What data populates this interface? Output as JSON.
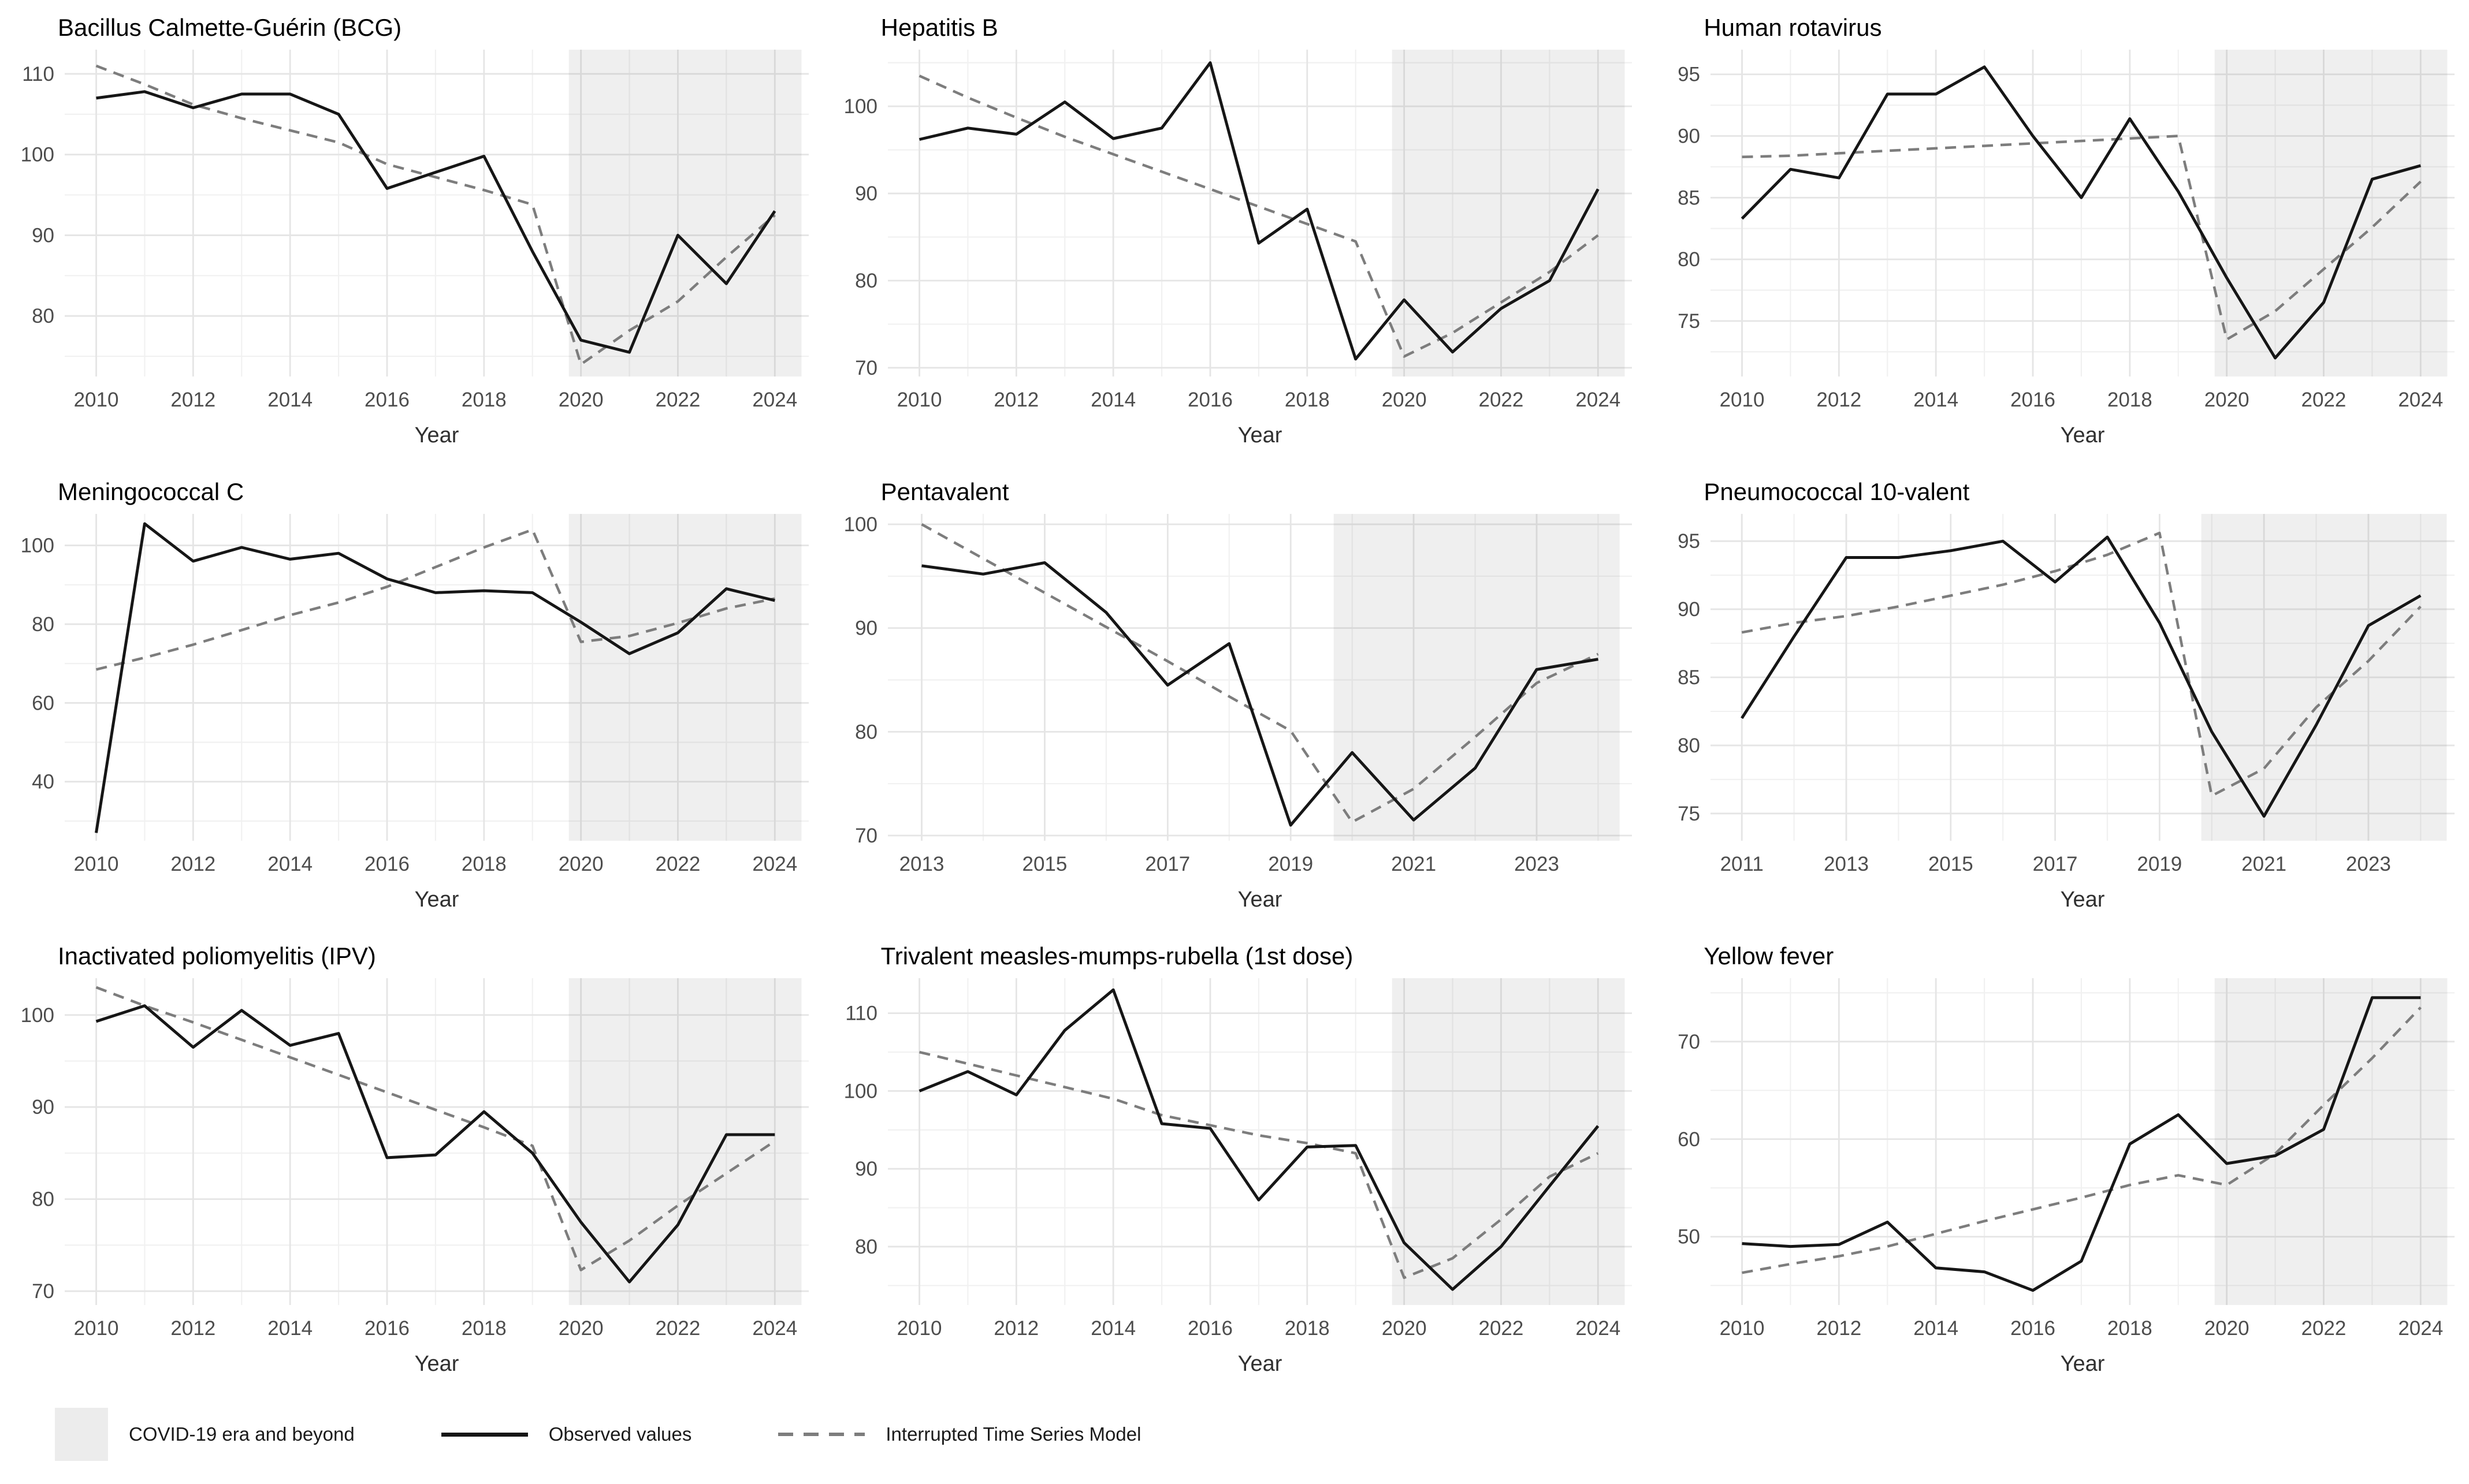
{
  "legend": {
    "covid_label": "COVID-19 era and beyond",
    "observed_label": "Observed values",
    "model_label": "Interrupted Time Series Model"
  },
  "colors": {
    "observed": "#161616",
    "model": "#7d7d7d",
    "shade": "rgba(125,125,125,0.12)",
    "grid_major": "#e5e5e5",
    "grid_minor": "#f1f1f1",
    "axis_text": "#4d4d4d",
    "axis_title": "#303030",
    "title": "#000000"
  },
  "chart_data": [
    {
      "type": "line",
      "title": "Bacillus Calmette-Guérin (BCG)",
      "xlabel": "Year",
      "x": [
        2010,
        2011,
        2012,
        2013,
        2014,
        2015,
        2016,
        2017,
        2018,
        2019,
        2020,
        2021,
        2022,
        2023,
        2024
      ],
      "series": [
        {
          "name": "Observed values",
          "values": [
            107,
            107.8,
            105.8,
            107.5,
            107.5,
            105,
            95.8,
            97.8,
            99.8,
            88,
            77,
            75.5,
            90,
            84,
            93
          ]
        },
        {
          "name": "Interrupted Time Series Model",
          "style": "dashed",
          "values": [
            111,
            108.7,
            106.2,
            104.5,
            103,
            101.5,
            98.8,
            97.2,
            95.6,
            93.8,
            74,
            78.2,
            81.8,
            87.3,
            92.5
          ]
        }
      ],
      "x_ticks": [
        2010,
        2012,
        2014,
        2016,
        2018,
        2020,
        2022,
        2024
      ],
      "y_ticks": [
        80,
        90,
        100,
        110
      ],
      "xlim": [
        2009.35,
        2024.7
      ],
      "ylim": [
        72.5,
        113
      ],
      "covid_region": [
        2019.75,
        2024.55
      ]
    },
    {
      "type": "line",
      "title": "Hepatitis B",
      "xlabel": "Year",
      "x": [
        2010,
        2011,
        2012,
        2013,
        2014,
        2015,
        2016,
        2017,
        2018,
        2019,
        2020,
        2021,
        2022,
        2023,
        2024
      ],
      "series": [
        {
          "name": "Observed values",
          "values": [
            96.2,
            97.5,
            96.8,
            100.5,
            96.3,
            97.5,
            105,
            84.3,
            88.2,
            71,
            77.8,
            71.8,
            76.8,
            80,
            90.5
          ]
        },
        {
          "name": "Interrupted Time Series Model",
          "style": "dashed",
          "values": [
            103.5,
            101,
            98.7,
            96.5,
            94.5,
            92.5,
            90.5,
            88.5,
            86.5,
            84.5,
            71.3,
            74,
            77.5,
            81,
            85.2
          ]
        }
      ],
      "x_ticks": [
        2010,
        2012,
        2014,
        2016,
        2018,
        2020,
        2022,
        2024
      ],
      "y_ticks": [
        70,
        80,
        90,
        100
      ],
      "xlim": [
        2009.35,
        2024.7
      ],
      "ylim": [
        69,
        106.5
      ],
      "covid_region": [
        2019.75,
        2024.55
      ]
    },
    {
      "type": "line",
      "title": "Human rotavirus",
      "xlabel": "Year",
      "x": [
        2010,
        2011,
        2012,
        2013,
        2014,
        2015,
        2016,
        2017,
        2018,
        2019,
        2020,
        2021,
        2022,
        2023,
        2024
      ],
      "series": [
        {
          "name": "Observed values",
          "values": [
            83.3,
            87.3,
            86.6,
            93.4,
            93.4,
            95.6,
            90,
            85,
            91.4,
            85.5,
            78.5,
            72,
            76.5,
            86.5,
            87.6
          ]
        },
        {
          "name": "Interrupted Time Series Model",
          "style": "dashed",
          "values": [
            88.3,
            88.4,
            88.6,
            88.8,
            89,
            89.2,
            89.4,
            89.6,
            89.8,
            90,
            73.5,
            75.8,
            79.2,
            82.6,
            86.3
          ]
        }
      ],
      "x_ticks": [
        2010,
        2012,
        2014,
        2016,
        2018,
        2020,
        2022,
        2024
      ],
      "y_ticks": [
        75,
        80,
        85,
        90,
        95
      ],
      "xlim": [
        2009.35,
        2024.7
      ],
      "ylim": [
        70.5,
        97
      ],
      "covid_region": [
        2019.75,
        2024.55
      ]
    },
    {
      "type": "line",
      "title": "Meningococcal C",
      "xlabel": "Year",
      "x": [
        2010,
        2011,
        2012,
        2013,
        2014,
        2015,
        2016,
        2017,
        2018,
        2019,
        2020,
        2021,
        2022,
        2023,
        2024
      ],
      "series": [
        {
          "name": "Observed values",
          "values": [
            27,
            105.5,
            96,
            99.5,
            96.5,
            98,
            91.5,
            88,
            88.5,
            88,
            80.5,
            72.5,
            77.8,
            89,
            86
          ]
        },
        {
          "name": "Interrupted Time Series Model",
          "style": "dashed",
          "values": [
            68.5,
            71.5,
            74.8,
            78.5,
            82.3,
            85.5,
            89.5,
            94.5,
            99.5,
            104,
            75.5,
            77,
            80.3,
            84,
            86.5
          ]
        }
      ],
      "x_ticks": [
        2010,
        2012,
        2014,
        2016,
        2018,
        2020,
        2022,
        2024
      ],
      "y_ticks": [
        40,
        60,
        80,
        100
      ],
      "xlim": [
        2009.35,
        2024.7
      ],
      "ylim": [
        25,
        108
      ],
      "covid_region": [
        2019.75,
        2024.55
      ]
    },
    {
      "type": "line",
      "title": "Pentavalent",
      "xlabel": "Year",
      "x": [
        2013,
        2014,
        2015,
        2016,
        2017,
        2018,
        2019,
        2020,
        2021,
        2022,
        2023,
        2024
      ],
      "series": [
        {
          "name": "Observed values",
          "values": [
            96,
            95.2,
            96.3,
            91.5,
            84.5,
            88.5,
            71,
            78,
            71.5,
            76.5,
            86,
            87
          ]
        },
        {
          "name": "Interrupted Time Series Model",
          "style": "dashed",
          "values": [
            100,
            96.7,
            93.4,
            90.1,
            86.8,
            83.4,
            80.1,
            71.3,
            74.5,
            79.5,
            84.7,
            87.5
          ]
        }
      ],
      "x_ticks": [
        2013,
        2015,
        2017,
        2019,
        2021,
        2023
      ],
      "y_ticks": [
        70,
        80,
        90,
        100
      ],
      "xlim": [
        2012.45,
        2024.55
      ],
      "ylim": [
        69.5,
        101
      ],
      "covid_region": [
        2019.7,
        2024.35
      ]
    },
    {
      "type": "line",
      "title": "Pneumococcal 10-valent",
      "xlabel": "Year",
      "x": [
        2011,
        2012,
        2013,
        2014,
        2015,
        2016,
        2017,
        2018,
        2019,
        2020,
        2021,
        2022,
        2023,
        2024
      ],
      "series": [
        {
          "name": "Observed values",
          "values": [
            82,
            88,
            93.8,
            93.8,
            94.3,
            95,
            92,
            95.3,
            89,
            81,
            74.8,
            81.5,
            88.8,
            91
          ]
        },
        {
          "name": "Interrupted Time Series Model",
          "style": "dashed",
          "values": [
            88.3,
            89,
            89.5,
            90.2,
            91,
            91.8,
            92.8,
            94,
            95.6,
            76.3,
            78.3,
            82.8,
            86.2,
            90.2
          ]
        }
      ],
      "x_ticks": [
        2011,
        2013,
        2015,
        2017,
        2019,
        2021,
        2023
      ],
      "y_ticks": [
        75,
        80,
        85,
        90,
        95
      ],
      "xlim": [
        2010.4,
        2024.65
      ],
      "ylim": [
        73,
        97
      ],
      "covid_region": [
        2019.8,
        2024.5
      ]
    },
    {
      "type": "line",
      "title": "Inactivated poliomyelitis (IPV)",
      "xlabel": "Year",
      "x": [
        2010,
        2011,
        2012,
        2013,
        2014,
        2015,
        2016,
        2017,
        2018,
        2019,
        2020,
        2021,
        2022,
        2023,
        2024
      ],
      "series": [
        {
          "name": "Observed values",
          "values": [
            99.3,
            101,
            96.5,
            100.5,
            96.7,
            98,
            84.5,
            84.8,
            89.5,
            85,
            77.5,
            71,
            77.2,
            87,
            87
          ]
        },
        {
          "name": "Interrupted Time Series Model",
          "style": "dashed",
          "values": [
            103,
            101,
            99.2,
            97.3,
            95.4,
            93.5,
            91.6,
            89.7,
            87.8,
            85.8,
            72.3,
            75.5,
            79.3,
            82.8,
            86.3
          ]
        }
      ],
      "x_ticks": [
        2010,
        2012,
        2014,
        2016,
        2018,
        2020,
        2022,
        2024
      ],
      "y_ticks": [
        70,
        80,
        90,
        100
      ],
      "xlim": [
        2009.35,
        2024.7
      ],
      "ylim": [
        68.5,
        104
      ],
      "covid_region": [
        2019.75,
        2024.55
      ]
    },
    {
      "type": "line",
      "title": "Trivalent measles-mumps-rubella (1st dose)",
      "xlabel": "Year",
      "x": [
        2010,
        2011,
        2012,
        2013,
        2014,
        2015,
        2016,
        2017,
        2018,
        2019,
        2020,
        2021,
        2022,
        2023,
        2024
      ],
      "series": [
        {
          "name": "Observed values",
          "values": [
            100,
            102.5,
            99.5,
            107.8,
            113,
            95.8,
            95.2,
            86,
            92.8,
            93,
            80.5,
            74.5,
            80,
            87.8,
            95.5
          ]
        },
        {
          "name": "Interrupted Time Series Model",
          "style": "dashed",
          "values": [
            105,
            103.5,
            102,
            100.5,
            99,
            96.9,
            95.6,
            94.3,
            93.3,
            92,
            76,
            78.5,
            83.5,
            89,
            92
          ]
        }
      ],
      "x_ticks": [
        2010,
        2012,
        2014,
        2016,
        2018,
        2020,
        2022,
        2024
      ],
      "y_ticks": [
        80,
        90,
        100,
        110
      ],
      "xlim": [
        2009.35,
        2024.7
      ],
      "ylim": [
        72.5,
        114.5
      ],
      "covid_region": [
        2019.75,
        2024.55
      ]
    },
    {
      "type": "line",
      "title": "Yellow fever",
      "xlabel": "Year",
      "x": [
        2010,
        2011,
        2012,
        2013,
        2014,
        2015,
        2016,
        2017,
        2018,
        2019,
        2020,
        2021,
        2022,
        2023,
        2024
      ],
      "series": [
        {
          "name": "Observed values",
          "values": [
            49.3,
            49,
            49.2,
            51.5,
            46.8,
            46.4,
            44.5,
            47.5,
            59.5,
            62.5,
            57.5,
            58.3,
            61,
            74.5,
            74.5
          ]
        },
        {
          "name": "Interrupted Time Series Model",
          "style": "dashed",
          "values": [
            46.3,
            47.2,
            48,
            49,
            50.3,
            51.6,
            52.8,
            54,
            55.3,
            56.3,
            55.3,
            58.5,
            63.5,
            68.3,
            73.5
          ]
        }
      ],
      "x_ticks": [
        2010,
        2012,
        2014,
        2016,
        2018,
        2020,
        2022,
        2024
      ],
      "y_ticks": [
        50,
        60,
        70
      ],
      "xlim": [
        2009.35,
        2024.7
      ],
      "ylim": [
        43,
        76.5
      ],
      "covid_region": [
        2019.75,
        2024.55
      ]
    }
  ]
}
